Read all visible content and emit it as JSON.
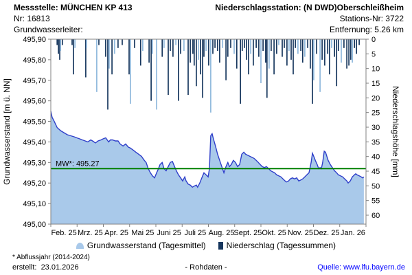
{
  "header": {
    "station_label": "Messstelle: MÜNCHEN KP 413",
    "station_nr": "Nr: 16813",
    "aquifer_label": "Grundwasserleiter:",
    "precip_station_label": "Niederschlagsstation: (N DWD)Oberschleißheim",
    "precip_station_nr": "Stations-Nr: 3722",
    "distance_label": "Entfernung: 5.26 km"
  },
  "legend": {
    "groundwater_label": "Grundwasserstand (Tagesmittel)",
    "precipitation_label": "Niederschlag (Tagessummen)"
  },
  "footer": {
    "footnote": "* Abflussjahr (2014-2024)",
    "created_label": "erstellt:  23.01.2026",
    "center_label": "- Rohdaten -",
    "source_prefix": "Quelle: ",
    "source_link": "www.lfu.bayern.de"
  },
  "chart_data": {
    "type": "combo (area/line groundwater + inverted bar precipitation)",
    "x_axis": {
      "unit": "month",
      "tick_labels": [
        "Feb. 25",
        "Mrz. 25",
        "Apr. 25",
        "Mai 25",
        "Juni 25",
        "Juli 25",
        "Aug. 25",
        "Sept. 25",
        "Okt. 25",
        "Nov. 25",
        "Dez. 25",
        "Jan. 26"
      ]
    },
    "y_left": {
      "label": "Grundwasserstand [m ü. NN]",
      "min": 495.0,
      "max": 495.9,
      "step": 0.1,
      "tick_labels": [
        "495,00",
        "495,10",
        "495,20",
        "495,30",
        "495,40",
        "495,50",
        "495,60",
        "495,70",
        "495,80",
        "495,90"
      ]
    },
    "y_right": {
      "label": "Niederschlagshöhe [mm]",
      "min": 0,
      "max": 60,
      "step": 5,
      "inverted": true,
      "tick_labels": [
        "0",
        "5",
        "10",
        "15",
        "20",
        "25",
        "30",
        "35",
        "40",
        "45",
        "50",
        "55",
        "60"
      ]
    },
    "mean_line": {
      "label": "MW*: 495.27",
      "value": 495.27,
      "color": "#008000"
    },
    "groundwater_series": {
      "name": "Grundwasserstand (Tagesmittel)",
      "unit": "m ü. NN",
      "points": [
        [
          0,
          495.55
        ],
        [
          0.05,
          495.52
        ],
        [
          0.13,
          495.5
        ],
        [
          0.24,
          495.47
        ],
        [
          0.37,
          495.455
        ],
        [
          0.5,
          495.445
        ],
        [
          0.63,
          495.435
        ],
        [
          0.76,
          495.43
        ],
        [
          0.89,
          495.425
        ],
        [
          0.99,
          495.42
        ],
        [
          1.1,
          495.415
        ],
        [
          1.2,
          495.41
        ],
        [
          1.31,
          495.405
        ],
        [
          1.41,
          495.4
        ],
        [
          1.52,
          495.41
        ],
        [
          1.59,
          495.405
        ],
        [
          1.7,
          495.395
        ],
        [
          1.8,
          495.405
        ],
        [
          1.91,
          495.41
        ],
        [
          1.99,
          495.415
        ],
        [
          2.09,
          495.42
        ],
        [
          2.2,
          495.4
        ],
        [
          2.27,
          495.41
        ],
        [
          2.35,
          495.41
        ],
        [
          2.46,
          495.405
        ],
        [
          2.56,
          495.405
        ],
        [
          2.64,
          495.39
        ],
        [
          2.75,
          495.38
        ],
        [
          2.85,
          495.39
        ],
        [
          2.95,
          495.375
        ],
        [
          3.03,
          495.37
        ],
        [
          3.14,
          495.36
        ],
        [
          3.24,
          495.35
        ],
        [
          3.35,
          495.34
        ],
        [
          3.45,
          495.33
        ],
        [
          3.56,
          495.31
        ],
        [
          3.63,
          495.3
        ],
        [
          3.71,
          495.27
        ],
        [
          3.79,
          495.25
        ],
        [
          3.87,
          495.235
        ],
        [
          3.95,
          495.225
        ],
        [
          4.03,
          495.25
        ],
        [
          4.1,
          495.27
        ],
        [
          4.16,
          495.29
        ],
        [
          4.24,
          495.3
        ],
        [
          4.31,
          495.27
        ],
        [
          4.39,
          495.26
        ],
        [
          4.47,
          495.28
        ],
        [
          4.55,
          495.3
        ],
        [
          4.63,
          495.305
        ],
        [
          4.71,
          495.28
        ],
        [
          4.78,
          495.26
        ],
        [
          4.86,
          495.24
        ],
        [
          4.94,
          495.225
        ],
        [
          5.02,
          495.21
        ],
        [
          5.1,
          495.23
        ],
        [
          5.15,
          495.21
        ],
        [
          5.23,
          495.195
        ],
        [
          5.31,
          495.19
        ],
        [
          5.39,
          495.18
        ],
        [
          5.46,
          495.185
        ],
        [
          5.54,
          495.19
        ],
        [
          5.59,
          495.18
        ],
        [
          5.67,
          495.2
        ],
        [
          5.75,
          495.225
        ],
        [
          5.83,
          495.25
        ],
        [
          5.91,
          495.24
        ],
        [
          5.99,
          495.23
        ],
        [
          6.04,
          495.27
        ],
        [
          6.09,
          495.43
        ],
        [
          6.14,
          495.44
        ],
        [
          6.2,
          495.41
        ],
        [
          6.27,
          495.38
        ],
        [
          6.35,
          495.34
        ],
        [
          6.43,
          495.31
        ],
        [
          6.51,
          495.28
        ],
        [
          6.59,
          495.25
        ],
        [
          6.67,
          495.28
        ],
        [
          6.74,
          495.3
        ],
        [
          6.8,
          495.28
        ],
        [
          6.87,
          495.29
        ],
        [
          6.95,
          495.31
        ],
        [
          7.03,
          495.3
        ],
        [
          7.11,
          495.28
        ],
        [
          7.19,
          495.29
        ],
        [
          7.27,
          495.34
        ],
        [
          7.35,
          495.35
        ],
        [
          7.42,
          495.34
        ],
        [
          7.5,
          495.335
        ],
        [
          7.58,
          495.33
        ],
        [
          7.66,
          495.325
        ],
        [
          7.74,
          495.32
        ],
        [
          7.82,
          495.31
        ],
        [
          7.9,
          495.3
        ],
        [
          7.97,
          495.29
        ],
        [
          8.05,
          495.28
        ],
        [
          8.13,
          495.275
        ],
        [
          8.21,
          495.28
        ],
        [
          8.29,
          495.27
        ],
        [
          8.37,
          495.26
        ],
        [
          8.44,
          495.255
        ],
        [
          8.52,
          495.25
        ],
        [
          8.6,
          495.24
        ],
        [
          8.68,
          495.235
        ],
        [
          8.76,
          495.23
        ],
        [
          8.84,
          495.22
        ],
        [
          8.92,
          495.21
        ],
        [
          8.97,
          495.205
        ],
        [
          9.05,
          495.21
        ],
        [
          9.12,
          495.22
        ],
        [
          9.2,
          495.225
        ],
        [
          9.28,
          495.22
        ],
        [
          9.36,
          495.225
        ],
        [
          9.44,
          495.21
        ],
        [
          9.52,
          495.215
        ],
        [
          9.59,
          495.22
        ],
        [
          9.67,
          495.23
        ],
        [
          9.75,
          495.24
        ],
        [
          9.83,
          495.25
        ],
        [
          9.91,
          495.3
        ],
        [
          9.96,
          495.345
        ],
        [
          10.01,
          495.33
        ],
        [
          10.07,
          495.31
        ],
        [
          10.14,
          495.29
        ],
        [
          10.2,
          495.27
        ],
        [
          10.25,
          495.275
        ],
        [
          10.3,
          495.27
        ],
        [
          10.35,
          495.3
        ],
        [
          10.41,
          495.355
        ],
        [
          10.46,
          495.35
        ],
        [
          10.51,
          495.33
        ],
        [
          10.56,
          495.31
        ],
        [
          10.64,
          495.29
        ],
        [
          10.72,
          495.275
        ],
        [
          10.8,
          495.26
        ],
        [
          10.88,
          495.25
        ],
        [
          10.95,
          495.24
        ],
        [
          11.03,
          495.235
        ],
        [
          11.11,
          495.23
        ],
        [
          11.19,
          495.22
        ],
        [
          11.27,
          495.21
        ],
        [
          11.32,
          495.2
        ],
        [
          11.4,
          495.21
        ],
        [
          11.48,
          495.23
        ],
        [
          11.56,
          495.24
        ],
        [
          11.61,
          495.245
        ],
        [
          11.66,
          495.24
        ],
        [
          11.74,
          495.235
        ],
        [
          11.82,
          495.23
        ],
        [
          11.87,
          495.225
        ],
        [
          11.92,
          495.23
        ]
      ]
    },
    "precipitation_series": {
      "name": "Niederschlag (Tagessummen)",
      "unit": "mm",
      "bars": [
        [
          0.24,
          2,
          "d"
        ],
        [
          0.29,
          5,
          "d"
        ],
        [
          0.34,
          7,
          "d"
        ],
        [
          0.37,
          4,
          "l"
        ],
        [
          0.44,
          2,
          "d"
        ],
        [
          0.81,
          2,
          "d"
        ],
        [
          0.86,
          12,
          "d"
        ],
        [
          0.92,
          3,
          "l"
        ],
        [
          1.33,
          13,
          "d"
        ],
        [
          1.36,
          3,
          "l"
        ],
        [
          1.75,
          18,
          "l"
        ],
        [
          1.83,
          2,
          "d"
        ],
        [
          2.09,
          6,
          "d"
        ],
        [
          2.17,
          24,
          "d"
        ],
        [
          2.22,
          10,
          "l"
        ],
        [
          2.33,
          12,
          "d"
        ],
        [
          2.43,
          5,
          "l"
        ],
        [
          2.56,
          3,
          "d"
        ],
        [
          2.72,
          2,
          "d"
        ],
        [
          2.98,
          12,
          "d"
        ],
        [
          3.03,
          22,
          "l"
        ],
        [
          3.19,
          3,
          "d"
        ],
        [
          3.42,
          9,
          "d"
        ],
        [
          3.5,
          4,
          "l"
        ],
        [
          3.74,
          8,
          "d"
        ],
        [
          3.82,
          21,
          "d"
        ],
        [
          3.87,
          5,
          "l"
        ],
        [
          4.03,
          24,
          "l"
        ],
        [
          4.24,
          6,
          "d"
        ],
        [
          4.31,
          3,
          "l"
        ],
        [
          4.47,
          19,
          "d"
        ],
        [
          4.55,
          4,
          "d"
        ],
        [
          4.65,
          6,
          "d"
        ],
        [
          4.76,
          2,
          "l"
        ],
        [
          4.86,
          21,
          "d"
        ],
        [
          4.94,
          5,
          "d"
        ],
        [
          5.07,
          4,
          "l"
        ],
        [
          5.23,
          19,
          "d"
        ],
        [
          5.31,
          8,
          "d"
        ],
        [
          5.41,
          5,
          "d"
        ],
        [
          5.46,
          9,
          "d"
        ],
        [
          5.54,
          16,
          "d"
        ],
        [
          5.62,
          7,
          "l"
        ],
        [
          5.7,
          12,
          "d"
        ],
        [
          5.78,
          20,
          "d"
        ],
        [
          5.83,
          6,
          "d"
        ],
        [
          5.91,
          4,
          "l"
        ],
        [
          6.01,
          9,
          "d"
        ],
        [
          6.09,
          25,
          "l"
        ],
        [
          6.17,
          5,
          "d"
        ],
        [
          6.25,
          3,
          "d"
        ],
        [
          6.35,
          4,
          "d"
        ],
        [
          6.43,
          8,
          "d"
        ],
        [
          6.54,
          3,
          "l"
        ],
        [
          6.67,
          14,
          "d"
        ],
        [
          6.74,
          6,
          "d"
        ],
        [
          6.85,
          3,
          "d"
        ],
        [
          6.98,
          5,
          "l"
        ],
        [
          7.08,
          10,
          "d"
        ],
        [
          7.22,
          22,
          "d"
        ],
        [
          7.29,
          4,
          "d"
        ],
        [
          7.37,
          3,
          "d"
        ],
        [
          7.45,
          7,
          "d"
        ],
        [
          7.53,
          12,
          "d"
        ],
        [
          7.61,
          5,
          "l"
        ],
        [
          7.71,
          9,
          "d"
        ],
        [
          7.82,
          3,
          "d"
        ],
        [
          7.92,
          6,
          "d"
        ],
        [
          8,
          15,
          "l"
        ],
        [
          8.08,
          4,
          "d"
        ],
        [
          8.18,
          8,
          "d"
        ],
        [
          8.23,
          20,
          "d"
        ],
        [
          8.31,
          10,
          "l"
        ],
        [
          8.39,
          4,
          "d"
        ],
        [
          8.5,
          12,
          "d"
        ],
        [
          8.6,
          5,
          "d"
        ],
        [
          8.68,
          2,
          "l"
        ],
        [
          8.81,
          6,
          "d"
        ],
        [
          8.89,
          3,
          "d"
        ],
        [
          8.99,
          9,
          "d"
        ],
        [
          9.07,
          4,
          "l"
        ],
        [
          9.15,
          7,
          "d"
        ],
        [
          9.23,
          12,
          "d"
        ],
        [
          9.31,
          3,
          "d"
        ],
        [
          9.41,
          5,
          "l"
        ],
        [
          9.52,
          4,
          "d"
        ],
        [
          9.59,
          8,
          "d"
        ],
        [
          9.67,
          6,
          "l"
        ],
        [
          9.78,
          3,
          "d"
        ],
        [
          9.88,
          10,
          "d"
        ],
        [
          9.96,
          22,
          "d"
        ],
        [
          10.01,
          14,
          "l"
        ],
        [
          10.12,
          5,
          "d"
        ],
        [
          10.25,
          18,
          "l"
        ],
        [
          10.33,
          7,
          "d"
        ],
        [
          10.43,
          9,
          "d"
        ],
        [
          10.54,
          5,
          "d"
        ],
        [
          10.61,
          12,
          "d"
        ],
        [
          10.69,
          3,
          "l"
        ],
        [
          10.8,
          6,
          "d"
        ],
        [
          10.88,
          16,
          "d"
        ],
        [
          10.95,
          4,
          "d"
        ],
        [
          11.06,
          8,
          "l"
        ],
        [
          11.16,
          3,
          "d"
        ],
        [
          11.27,
          10,
          "d"
        ],
        [
          11.35,
          9,
          "d"
        ],
        [
          11.42,
          7,
          "d"
        ],
        [
          11.48,
          8,
          "l"
        ],
        [
          11.56,
          3,
          "d"
        ],
        [
          11.64,
          5,
          "d"
        ],
        [
          11.74,
          2,
          "d"
        ]
      ]
    },
    "colors": {
      "bar_dark": "#17375E",
      "bar_light": "#8FB8DC",
      "area_fill": "#A9C9EA",
      "line": "#2E3EC9",
      "mean_line": "#008000",
      "frame": "#808080",
      "link": "#0000FF"
    },
    "layout_hints": {
      "grid": false,
      "legend_position": "bottom-center",
      "precip_axis_inverted_from_top": true
    }
  }
}
